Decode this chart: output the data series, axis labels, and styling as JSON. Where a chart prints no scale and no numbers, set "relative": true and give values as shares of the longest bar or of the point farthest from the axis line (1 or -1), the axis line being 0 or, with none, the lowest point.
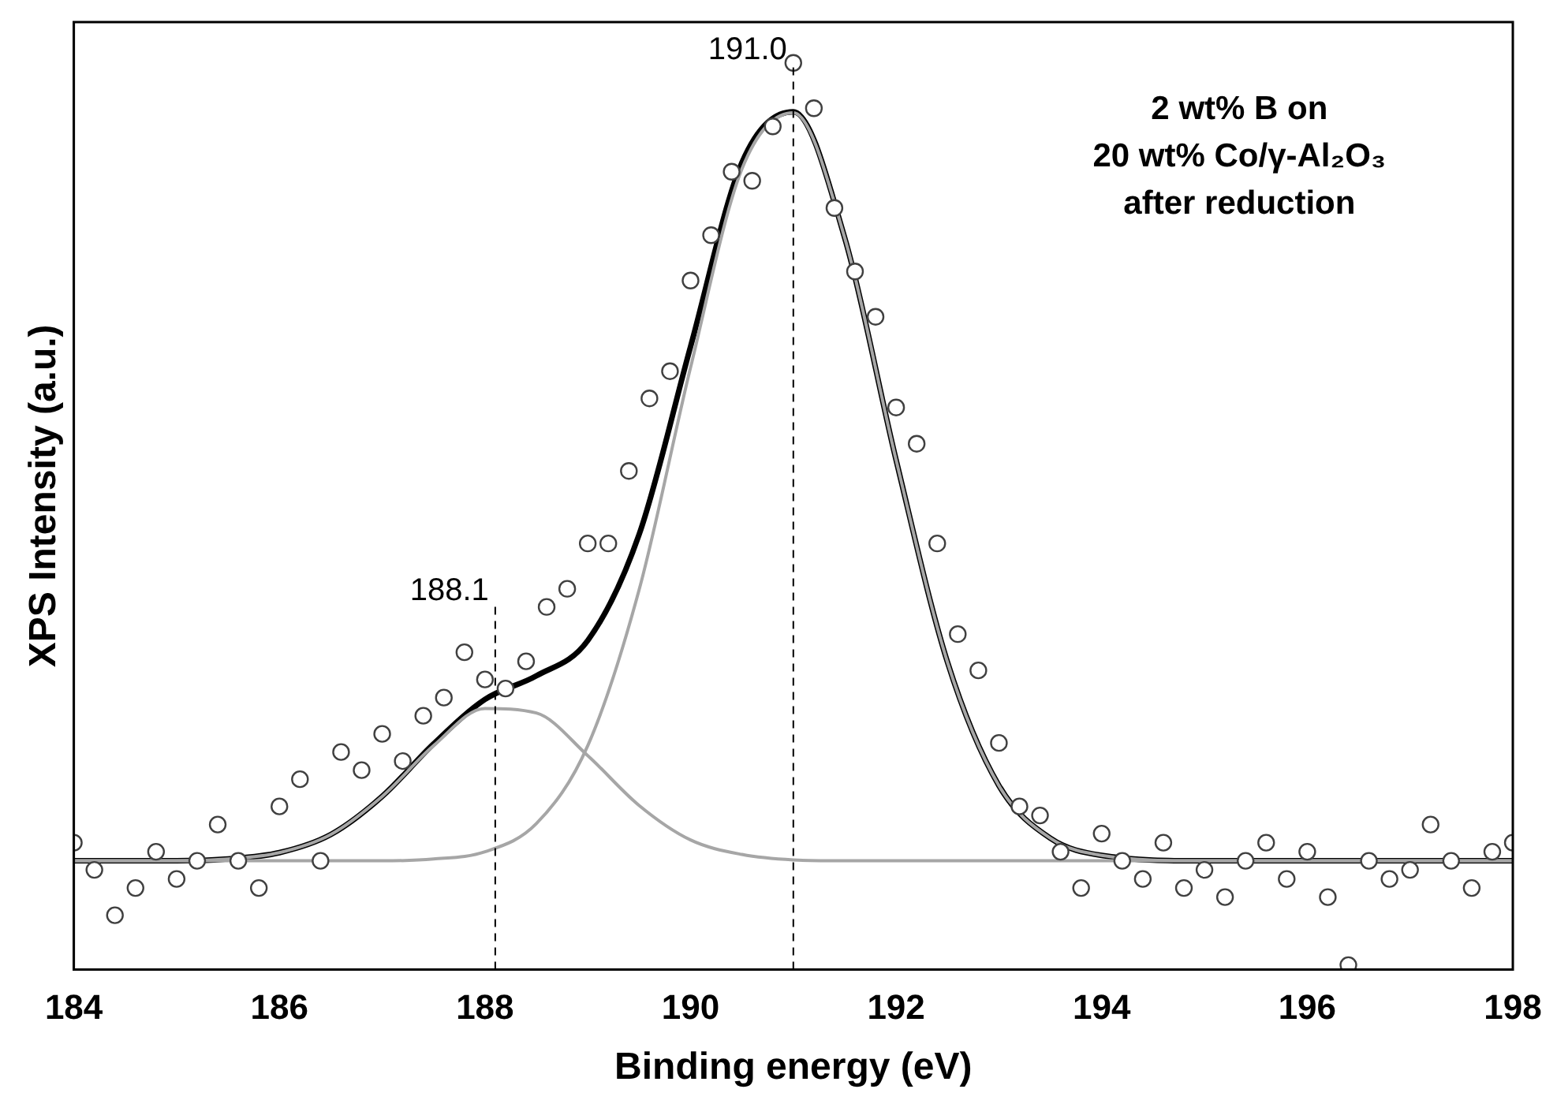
{
  "chart_data": {
    "type": "scatter",
    "xlabel": "Binding energy (eV)",
    "ylabel": "XPS Intensity (a.u.)",
    "relative": true,
    "xlim": [
      184,
      198
    ],
    "xticks": [
      184,
      186,
      188,
      190,
      192,
      194,
      196,
      198
    ],
    "tick_labels": "x",
    "grid": false,
    "legend": false,
    "annotations": [
      "2 wt% B on\n20 wt% Co/γ-Al₂O₃\nafter reduction"
    ],
    "ref_lines": [
      {
        "axis": "x",
        "value": 188.1,
        "label": "188.1",
        "line_style": "dashed",
        "color": "#000000"
      },
      {
        "axis": "x",
        "value": 191.0,
        "label": "191.0",
        "line_style": "dashed",
        "color": "#000000"
      }
    ],
    "series": [
      {
        "type": "line",
        "color": "#a6a6a6",
        "x": [
          184,
          185,
          185.5,
          186,
          186.5,
          187,
          187.5,
          188,
          188.5,
          189,
          189.5,
          190,
          190.5,
          191,
          191.5,
          192,
          192.5,
          193,
          193.5,
          194,
          195,
          196,
          198
        ],
        "values": [
          0.12,
          0.12,
          0.122,
          0.129,
          0.149,
          0.191,
          0.247,
          0.288,
          0.283,
          0.236,
          0.181,
          0.143,
          0.127,
          0.121,
          0.12,
          0.12,
          0.12,
          0.12,
          0.12,
          0.12,
          0.12,
          0.12,
          0.12
        ]
      },
      {
        "type": "line",
        "color": "#a6a6a6",
        "x": [
          184,
          185,
          185.5,
          186,
          186.5,
          187,
          187.5,
          188,
          188.5,
          189,
          189.5,
          190,
          190.5,
          191,
          191.5,
          192,
          192.5,
          193,
          193.5,
          194,
          195,
          196,
          198
        ],
        "values": [
          0.12,
          0.12,
          0.12,
          0.12,
          0.12,
          0.12,
          0.122,
          0.13,
          0.161,
          0.247,
          0.419,
          0.664,
          0.883,
          0.945,
          0.807,
          0.562,
          0.339,
          0.203,
          0.145,
          0.126,
          0.12,
          0.12,
          0.12
        ]
      },
      {
        "type": "line",
        "color": "#000000",
        "x": [
          184,
          185,
          185.5,
          186,
          186.5,
          187,
          187.5,
          188,
          188.5,
          189,
          189.5,
          190,
          190.5,
          191,
          191.5,
          192,
          192.5,
          193,
          193.5,
          194,
          195,
          196,
          198
        ],
        "values": [
          0.12,
          0.12,
          0.122,
          0.129,
          0.149,
          0.191,
          0.249,
          0.298,
          0.324,
          0.363,
          0.48,
          0.687,
          0.89,
          0.946,
          0.807,
          0.562,
          0.339,
          0.203,
          0.145,
          0.126,
          0.12,
          0.12,
          0.12
        ]
      },
      {
        "type": "scatter",
        "color": "#404040",
        "marker": "circle",
        "x": [
          184.0,
          184.2,
          184.4,
          184.6,
          184.8,
          185.0,
          185.2,
          185.4,
          185.6,
          185.8,
          186.0,
          186.2,
          186.4,
          186.6,
          186.8,
          187.0,
          187.2,
          187.4,
          187.6,
          187.8,
          188.0,
          188.2,
          188.4,
          188.6,
          188.8,
          189.0,
          189.2,
          189.4,
          189.6,
          189.8,
          190.0,
          190.2,
          190.4,
          190.6,
          190.8,
          191.0,
          191.2,
          191.4,
          191.6,
          191.8,
          192.0,
          192.2,
          192.4,
          192.6,
          192.8,
          193.0,
          193.2,
          193.4,
          193.6,
          193.8,
          194.0,
          194.2,
          194.4,
          194.6,
          194.8,
          195.0,
          195.2,
          195.4,
          195.6,
          195.8,
          196.0,
          196.2,
          196.4,
          196.6,
          196.8,
          197.0,
          197.2,
          197.4,
          197.6,
          197.8,
          198.0
        ],
        "values": [
          0.14,
          0.11,
          0.06,
          0.09,
          0.13,
          0.1,
          0.12,
          0.16,
          0.12,
          0.09,
          0.18,
          0.21,
          0.12,
          0.24,
          0.22,
          0.26,
          0.23,
          0.28,
          0.3,
          0.35,
          0.32,
          0.31,
          0.34,
          0.4,
          0.42,
          0.47,
          0.47,
          0.55,
          0.63,
          0.66,
          0.76,
          0.81,
          0.88,
          0.87,
          0.93,
          1.0,
          0.95,
          0.84,
          0.77,
          0.72,
          0.62,
          0.58,
          0.47,
          0.37,
          0.33,
          0.25,
          0.18,
          0.17,
          0.13,
          0.09,
          0.15,
          0.12,
          0.1,
          0.14,
          0.09,
          0.11,
          0.08,
          0.12,
          0.14,
          0.1,
          0.13,
          0.08,
          0.005,
          0.12,
          0.1,
          0.11,
          0.16,
          0.12,
          0.09,
          0.13,
          0.14
        ]
      }
    ]
  }
}
